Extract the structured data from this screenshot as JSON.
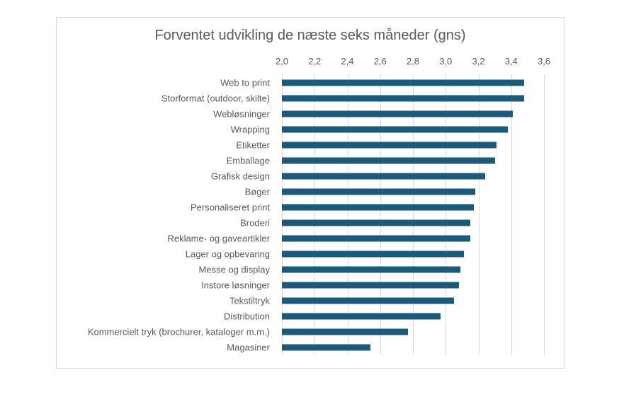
{
  "chart_data": {
    "type": "bar",
    "orientation": "horizontal",
    "title": "Forventet udvikling de næste seks måneder (gns)",
    "xlabel": "",
    "ylabel": "",
    "xlim": [
      2.0,
      3.6
    ],
    "x_ticks": [
      "2,0",
      "2,2",
      "2,4",
      "2,6",
      "2,8",
      "3,0",
      "3,2",
      "3,4",
      "3,6"
    ],
    "grid": true,
    "legend": null,
    "bar_color": "#1b5a7a",
    "categories": [
      "Web to print",
      "Storformat (outdoor, skilte)",
      "Webløsninger",
      "Wrapping",
      "Etiketter",
      "Emballage",
      "Grafisk design",
      "Bøger",
      "Personaliseret print",
      "Broderi",
      "Reklame- og gaveartikler",
      "Lager og opbevaring",
      "Messe og display",
      "Instore løsninger",
      "Tekstiltryk",
      "Distribution",
      "Kommercielt tryk (brochurer, kataloger m.m.)",
      "Magasiner"
    ],
    "values": [
      3.48,
      3.48,
      3.41,
      3.38,
      3.31,
      3.3,
      3.24,
      3.18,
      3.17,
      3.15,
      3.15,
      3.11,
      3.09,
      3.08,
      3.05,
      2.97,
      2.77,
      2.54
    ]
  }
}
